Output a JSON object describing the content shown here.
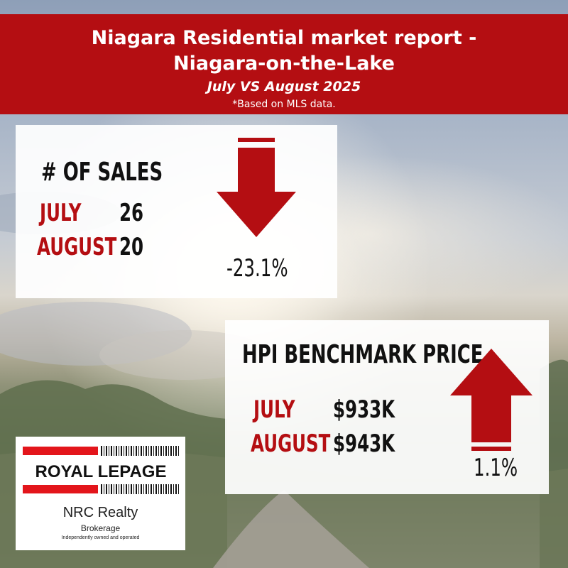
{
  "header": {
    "title_line1": "Niagara Residential market report -",
    "title_line2": "Niagara-on-the-Lake",
    "subtitle": "July VS August 2025",
    "note": "*Based on MLS data."
  },
  "sales": {
    "heading": "# OF SALES",
    "rows": [
      {
        "month": "JULY",
        "value": "26"
      },
      {
        "month": "AUGUST",
        "value": "20"
      }
    ],
    "change": "-23.1%",
    "trend": "down-arrow-icon"
  },
  "hpi": {
    "heading": "HPI BENCHMARK PRICE",
    "rows": [
      {
        "month": "JULY",
        "value": "$933K"
      },
      {
        "month": "AUGUST",
        "value": "$943K"
      }
    ],
    "change": "1.1%",
    "trend": "up-arrow-icon"
  },
  "logo": {
    "brand": "ROYAL LEPAGE",
    "company": "NRC Realty",
    "brokerage": "Brokerage",
    "tagline": "Independently owned and operated"
  },
  "colors": {
    "accent_red": "#b40e12",
    "logo_red": "#e3151b"
  }
}
